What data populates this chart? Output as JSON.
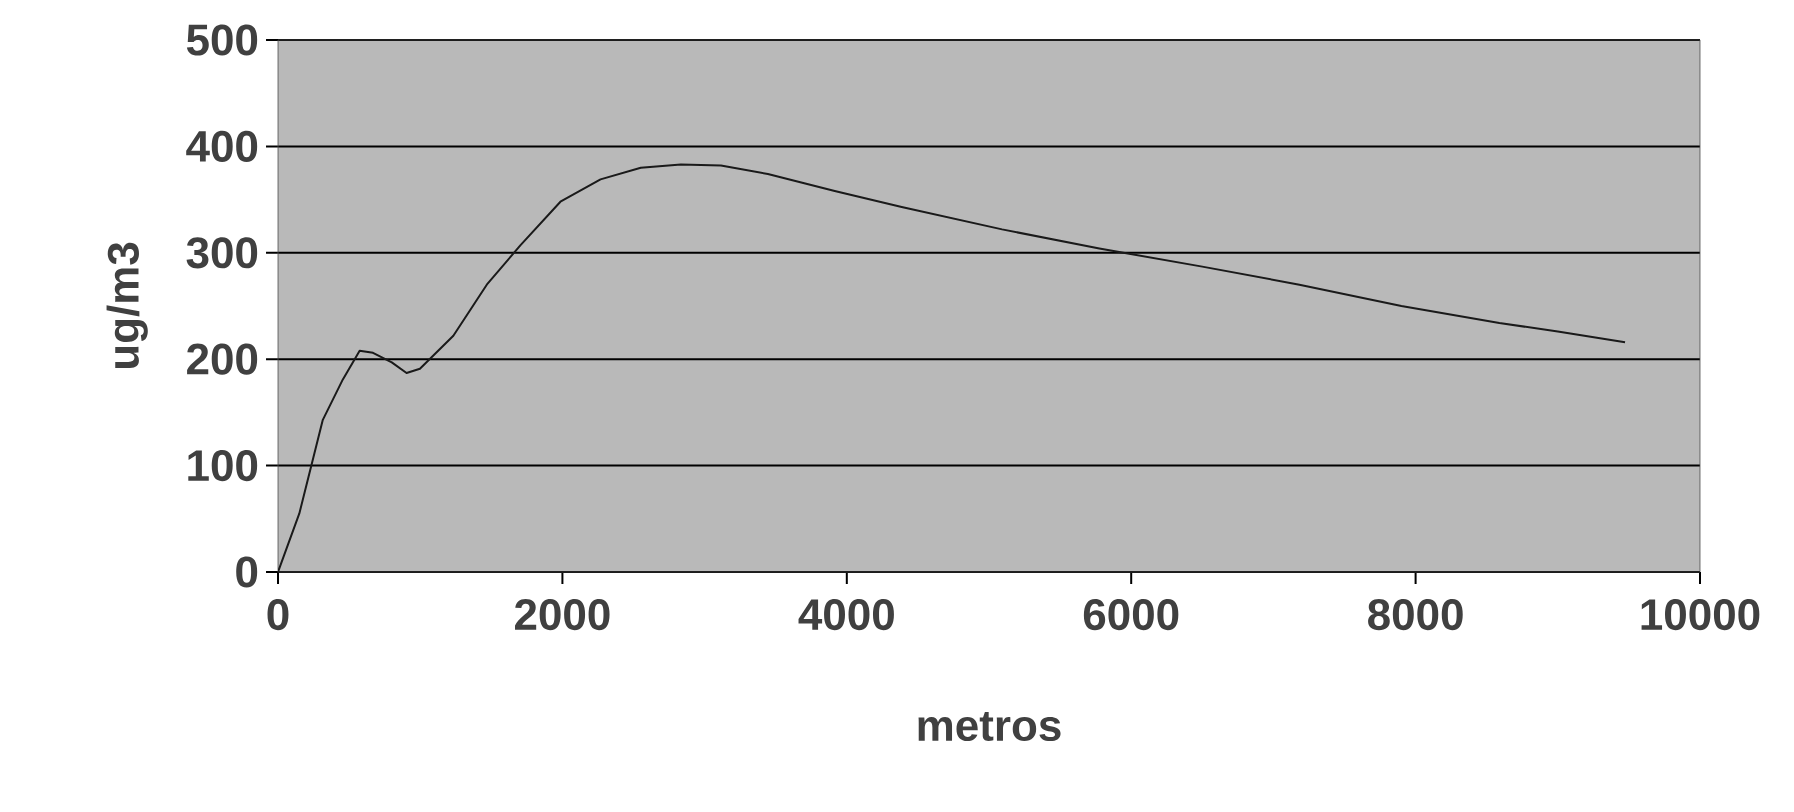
{
  "chart_data": {
    "type": "line",
    "xlabel": "metros",
    "ylabel": "ug/m3",
    "x": [
      0,
      150,
      315,
      456,
      574,
      668,
      800,
      904,
      998,
      1233,
      1468,
      1704,
      1986,
      2268,
      2551,
      2833,
      3115,
      3445,
      3915,
      4386,
      5092,
      5776,
      6500,
      7183,
      7900,
      8589,
      9000,
      9473
    ],
    "series": [
      {
        "color": "#1a1a1a",
        "values": [
          0,
          55,
          143,
          181,
          208,
          206,
          197,
          187,
          191,
          222,
          270,
          307,
          348,
          369,
          380,
          383,
          382,
          374,
          358,
          343,
          322,
          304,
          287,
          270,
          250,
          234,
          226,
          216
        ]
      }
    ],
    "xlim": [
      0,
      10000
    ],
    "ylim": [
      0,
      500
    ],
    "xticks": [
      0,
      2000,
      4000,
      6000,
      8000,
      10000
    ],
    "yticks": [
      0,
      100,
      200,
      300,
      400,
      500
    ],
    "grid": "y",
    "marker": "none",
    "line_style": "solid"
  }
}
